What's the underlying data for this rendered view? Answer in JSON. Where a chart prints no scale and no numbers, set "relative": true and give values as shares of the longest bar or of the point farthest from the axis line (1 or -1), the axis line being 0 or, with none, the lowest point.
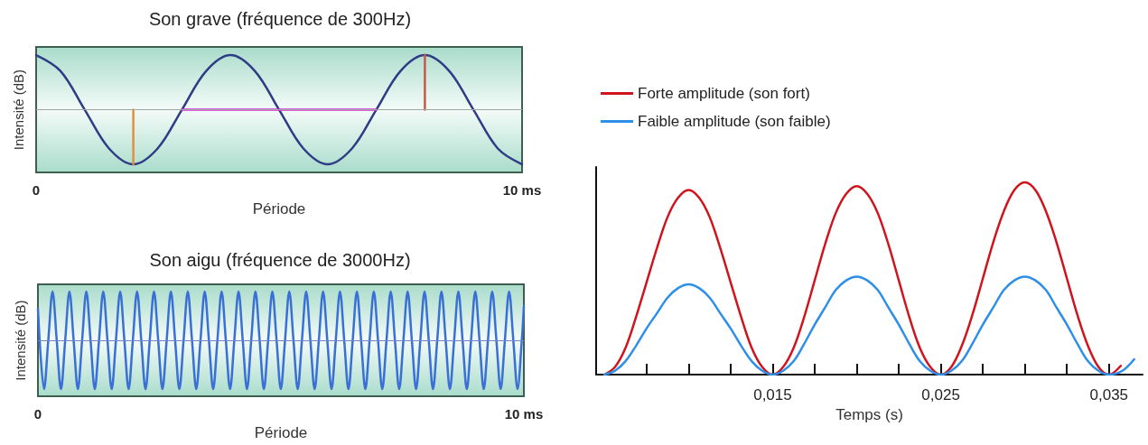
{
  "chart_data": [
    {
      "type": "line",
      "title": "Son grave (fréquence de 300Hz)",
      "xlabel": "Période",
      "ylabel": "Intensité (dB)",
      "relative": true,
      "xlim": [
        0,
        10
      ],
      "xticks": [
        0,
        {
          "value": 10,
          "label": "10 ms"
        }
      ],
      "marker": "none",
      "grid": false,
      "ref_lines": [
        {
          "axis": "y",
          "value": 0,
          "color": "#9aa8a0"
        }
      ],
      "series": [
        {
          "color": "#2f3d86",
          "x": [
            0,
            0.5,
            1,
            1.5,
            2,
            2.5,
            3,
            3.5,
            4,
            4.5,
            5,
            5.5,
            6,
            6.5,
            7,
            7.5,
            8,
            8.5,
            9,
            9.5,
            10
          ],
          "values": [
            1,
            0.71,
            0,
            -0.71,
            -1,
            -0.71,
            0,
            0.71,
            1,
            0.71,
            0,
            -0.71,
            -1,
            -0.71,
            0,
            0.71,
            1,
            0.71,
            0,
            -0.71,
            -1
          ]
        },
        {
          "color": "#d62fd6",
          "x": [
            3,
            7
          ],
          "values": [
            0,
            0
          ]
        },
        {
          "color": "#e0913a",
          "x": [
            2,
            2
          ],
          "values": [
            0,
            -1
          ]
        },
        {
          "color": "#c8584a",
          "x": [
            8,
            8
          ],
          "values": [
            0,
            1
          ]
        }
      ]
    },
    {
      "type": "line",
      "title": "Son aigu (fréquence de 3000Hz)",
      "xlabel": "Période",
      "ylabel": "Intensité (dB)",
      "relative": true,
      "xlim": [
        0,
        10
      ],
      "xticks": [
        0,
        {
          "value": 10,
          "label": "10 ms"
        }
      ],
      "marker": "none",
      "grid": false,
      "ref_lines": [
        {
          "axis": "y",
          "value": 0,
          "color": "#6f86c8"
        }
      ],
      "series": [
        {
          "color": "#3a6fd6",
          "x": [
            0,
            0.126,
            0.213,
            0.3,
            0.387,
            0.474,
            0.561,
            0.648,
            0.735,
            0.822,
            0.909,
            0.996,
            1.083,
            1.17,
            1.257,
            1.344,
            1.431,
            1.518,
            1.605,
            1.692,
            1.779,
            1.866,
            1.953,
            2.04,
            2.127,
            2.214,
            2.301,
            2.388,
            2.475,
            2.562,
            2.649,
            2.736,
            2.823,
            2.91,
            2.997,
            3.084,
            3.171,
            3.258,
            3.345,
            3.432,
            3.519,
            3.606,
            3.693,
            3.78,
            3.867,
            3.954,
            4.041,
            4.128,
            4.215,
            4.302,
            4.389,
            4.476,
            4.563,
            4.65,
            4.737,
            4.824,
            4.911,
            4.998,
            5.085,
            5.172,
            5.259,
            5.346,
            5.433,
            5.52,
            5.607,
            5.694,
            5.781,
            5.868,
            5.955,
            6.042,
            6.129,
            6.216,
            6.303,
            6.39,
            6.477,
            6.564,
            6.651,
            6.738,
            6.825,
            6.912,
            6.999,
            7.086,
            7.173,
            7.26,
            7.347,
            7.434,
            7.521,
            7.608,
            7.695,
            7.782,
            7.869,
            7.956,
            8.043,
            8.13,
            8.217,
            8.304,
            8.391,
            8.478,
            8.565,
            8.652,
            8.739,
            8.826,
            8.913,
            9.0,
            9.087,
            9.174,
            9.261,
            9.348,
            9.435,
            9.522,
            9.609,
            9.696,
            9.783,
            9.87,
            9.957,
            10
          ],
          "values": [
            0.65,
            -1,
            0,
            1,
            0,
            -1,
            0,
            1,
            0,
            -1,
            0,
            1,
            0,
            -1,
            0,
            1,
            0,
            -1,
            0,
            1,
            0,
            -1,
            0,
            1,
            0,
            -1,
            0,
            1,
            0,
            -1,
            0,
            1,
            0,
            -1,
            0,
            1,
            0,
            -1,
            0,
            1,
            0,
            -1,
            0,
            1,
            0,
            -1,
            0,
            1,
            0,
            -1,
            0,
            1,
            0,
            -1,
            0,
            1,
            0,
            -1,
            0,
            1,
            0,
            -1,
            0,
            1,
            0,
            -1,
            0,
            1,
            0,
            -1,
            0,
            1,
            0,
            -1,
            0,
            1,
            0,
            -1,
            0,
            1,
            0,
            -1,
            0,
            1,
            0,
            -1,
            0,
            1,
            0,
            -1,
            0,
            1,
            0,
            -1,
            0,
            1,
            0,
            -1,
            0,
            1,
            0,
            -1,
            0,
            1,
            0,
            -1,
            0,
            1,
            0,
            -1,
            0,
            1,
            0,
            -1,
            0,
            0.7
          ]
        }
      ]
    },
    {
      "type": "line",
      "xlabel": "Temps (s)",
      "relative": true,
      "xlim": [
        0.0045,
        0.037
      ],
      "xticks": [
        {
          "value": 0.0075,
          "label": null
        },
        {
          "value": 0.01,
          "label": null
        },
        {
          "value": 0.0125,
          "label": null
        },
        {
          "value": 0.015,
          "label": "0,015"
        },
        {
          "value": 0.0175,
          "label": null
        },
        {
          "value": 0.02,
          "label": null
        },
        {
          "value": 0.0225,
          "label": null
        },
        {
          "value": 0.025,
          "label": "0,025"
        },
        {
          "value": 0.0275,
          "label": null
        },
        {
          "value": 0.03,
          "label": null
        },
        {
          "value": 0.0325,
          "label": null
        },
        {
          "value": 0.035,
          "label": "0,035"
        }
      ],
      "marker": "none",
      "grid": false,
      "legend": "top left",
      "series": [
        {
          "name": "Forte amplitude (son fort)",
          "color": "#d0141e",
          "x": [
            0.005,
            0.005625,
            0.00625,
            0.006875,
            0.0075,
            0.008125,
            0.00875,
            0.009375,
            0.01,
            0.010625,
            0.01125,
            0.011875,
            0.0125,
            0.013125,
            0.01375,
            0.014375,
            0.015,
            0.015625,
            0.01625,
            0.016875,
            0.0175,
            0.018125,
            0.01875,
            0.019375,
            0.02,
            0.020625,
            0.02125,
            0.021875,
            0.0225,
            0.023125,
            0.02375,
            0.024375,
            0.025,
            0.025625,
            0.02625,
            0.026875,
            0.0275,
            0.028125,
            0.02875,
            0.029375,
            0.03,
            0.030625,
            0.03125,
            0.031875,
            0.0325,
            0.033125,
            0.03375,
            0.034375,
            0.035,
            0.0357
          ],
          "values": [
            0,
            0.04,
            0.14,
            0.3,
            0.48,
            0.66,
            0.82,
            0.92,
            0.96,
            0.92,
            0.82,
            0.66,
            0.48,
            0.3,
            0.14,
            0.04,
            0,
            0.04,
            0.14,
            0.3,
            0.49,
            0.68,
            0.84,
            0.94,
            0.98,
            0.94,
            0.84,
            0.68,
            0.49,
            0.3,
            0.14,
            0.04,
            0,
            0.04,
            0.15,
            0.31,
            0.5,
            0.69,
            0.85,
            0.96,
            1,
            0.96,
            0.85,
            0.69,
            0.5,
            0.31,
            0.15,
            0.04,
            0,
            0.046
          ]
        },
        {
          "name": "Faible amplitude (son faible)",
          "color": "#2e8fe8",
          "x": [
            0.005,
            0.005625,
            0.00625,
            0.006875,
            0.0075,
            0.008125,
            0.00875,
            0.009375,
            0.01,
            0.010625,
            0.01125,
            0.011875,
            0.0125,
            0.013125,
            0.01375,
            0.014375,
            0.015,
            0.015625,
            0.01625,
            0.016875,
            0.0175,
            0.018125,
            0.01875,
            0.019375,
            0.02,
            0.020625,
            0.02125,
            0.021875,
            0.0225,
            0.023125,
            0.02375,
            0.024375,
            0.025,
            0.025625,
            0.02625,
            0.026875,
            0.0275,
            0.028125,
            0.02875,
            0.029375,
            0.03,
            0.030625,
            0.03125,
            0.031875,
            0.0325,
            0.033125,
            0.03375,
            0.034375,
            0.035,
            0.0358,
            0.0365
          ],
          "values": [
            0,
            0.02,
            0.07,
            0.15,
            0.24,
            0.32,
            0.4,
            0.45,
            0.47,
            0.45,
            0.4,
            0.32,
            0.24,
            0.15,
            0.07,
            0.02,
            0,
            0.02,
            0.07,
            0.16,
            0.26,
            0.35,
            0.44,
            0.49,
            0.51,
            0.49,
            0.44,
            0.35,
            0.26,
            0.16,
            0.07,
            0.02,
            0,
            0.02,
            0.07,
            0.16,
            0.26,
            0.35,
            0.44,
            0.49,
            0.51,
            0.49,
            0.44,
            0.35,
            0.26,
            0.16,
            0.07,
            0.02,
            0,
            0.02,
            0.08
          ]
        }
      ]
    }
  ]
}
